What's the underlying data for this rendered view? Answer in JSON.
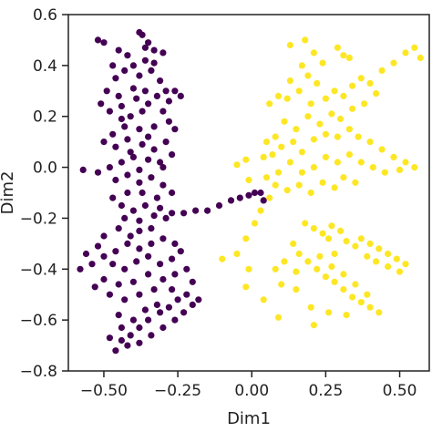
{
  "chart_data": {
    "type": "scatter",
    "title": "",
    "xlabel": "Dim1",
    "ylabel": "Dim2",
    "xlim": [
      -0.62,
      0.6
    ],
    "ylim": [
      -0.8,
      0.6
    ],
    "x_ticks": [
      -0.5,
      -0.25,
      0.0,
      0.25,
      0.5
    ],
    "x_tick_labels": [
      "−0.50",
      "−0.25",
      "0.00",
      "0.25",
      "0.50"
    ],
    "y_ticks": [
      0.6,
      0.4,
      0.2,
      0.0,
      -0.2,
      -0.4,
      -0.6,
      -0.8
    ],
    "y_tick_labels": [
      "0.6",
      "0.4",
      "0.2",
      "0.0",
      "−0.2",
      "−0.4",
      "−0.6",
      "−0.8"
    ],
    "grid": false,
    "legend": "none",
    "series": [
      {
        "color": "#440154",
        "points": [
          [
            -0.52,
            0.5
          ],
          [
            -0.5,
            0.49
          ],
          [
            -0.45,
            0.46
          ],
          [
            -0.42,
            0.44
          ],
          [
            -0.38,
            0.53
          ],
          [
            -0.37,
            0.52
          ],
          [
            -0.35,
            0.49
          ],
          [
            -0.33,
            0.46
          ],
          [
            -0.3,
            0.45
          ],
          [
            -0.36,
            0.42
          ],
          [
            -0.4,
            0.4
          ],
          [
            -0.43,
            0.38
          ],
          [
            -0.46,
            0.35
          ],
          [
            -0.38,
            0.36
          ],
          [
            -0.34,
            0.38
          ],
          [
            -0.31,
            0.34
          ],
          [
            -0.29,
            0.3
          ],
          [
            -0.26,
            0.3
          ],
          [
            -0.24,
            0.28
          ],
          [
            -0.32,
            0.28
          ],
          [
            -0.4,
            0.31
          ],
          [
            -0.45,
            0.28
          ],
          [
            -0.49,
            0.3
          ],
          [
            -0.51,
            0.25
          ],
          [
            -0.48,
            0.22
          ],
          [
            -0.44,
            0.24
          ],
          [
            -0.41,
            0.2
          ],
          [
            -0.37,
            0.22
          ],
          [
            -0.35,
            0.25
          ],
          [
            -0.3,
            0.22
          ],
          [
            -0.28,
            0.18
          ],
          [
            -0.26,
            0.15
          ],
          [
            -0.33,
            0.16
          ],
          [
            -0.38,
            0.15
          ],
          [
            -0.43,
            0.16
          ],
          [
            -0.47,
            0.13
          ],
          [
            -0.5,
            0.1
          ],
          [
            -0.46,
            0.08
          ],
          [
            -0.42,
            0.11
          ],
          [
            -0.37,
            0.09
          ],
          [
            -0.33,
            0.07
          ],
          [
            -0.29,
            0.1
          ],
          [
            -0.27,
            0.05
          ],
          [
            -0.31,
            0.02
          ],
          [
            -0.35,
            0.03
          ],
          [
            -0.4,
            0.04
          ],
          [
            -0.44,
            0.02
          ],
          [
            -0.48,
            0.0
          ],
          [
            -0.52,
            -0.02
          ],
          [
            -0.57,
            -0.01
          ],
          [
            -0.46,
            -0.05
          ],
          [
            -0.42,
            -0.03
          ],
          [
            -0.38,
            -0.06
          ],
          [
            -0.34,
            -0.04
          ],
          [
            -0.3,
            -0.07
          ],
          [
            -0.27,
            -0.1
          ],
          [
            -0.32,
            -0.12
          ],
          [
            -0.37,
            -0.1
          ],
          [
            -0.42,
            -0.1
          ],
          [
            -0.47,
            -0.12
          ],
          [
            -0.44,
            -0.15
          ],
          [
            -0.4,
            -0.17
          ],
          [
            -0.36,
            -0.15
          ],
          [
            -0.31,
            -0.16
          ],
          [
            -0.27,
            -0.18
          ],
          [
            -0.23,
            -0.18
          ],
          [
            -0.19,
            -0.17
          ],
          [
            -0.15,
            -0.17
          ],
          [
            -0.11,
            -0.15
          ],
          [
            -0.07,
            -0.13
          ],
          [
            -0.04,
            -0.12
          ],
          [
            -0.01,
            -0.11
          ],
          [
            0.01,
            -0.1
          ],
          [
            0.03,
            -0.1
          ],
          [
            0.04,
            -0.13
          ],
          [
            -0.33,
            -0.19
          ],
          [
            -0.29,
            -0.2
          ],
          [
            -0.38,
            -0.21
          ],
          [
            -0.43,
            -0.2
          ],
          [
            -0.34,
            -0.24
          ],
          [
            -0.3,
            -0.28
          ],
          [
            -0.26,
            -0.3
          ],
          [
            -0.34,
            -0.3
          ],
          [
            -0.38,
            -0.32
          ],
          [
            -0.42,
            -0.3
          ],
          [
            -0.46,
            -0.33
          ],
          [
            -0.5,
            -0.35
          ],
          [
            -0.54,
            -0.38
          ],
          [
            -0.58,
            -0.4
          ],
          [
            -0.56,
            -0.34
          ],
          [
            -0.52,
            -0.31
          ],
          [
            -0.47,
            -0.38
          ],
          [
            -0.43,
            -0.4
          ],
          [
            -0.39,
            -0.37
          ],
          [
            -0.35,
            -0.35
          ],
          [
            -0.31,
            -0.38
          ],
          [
            -0.27,
            -0.36
          ],
          [
            -0.24,
            -0.33
          ],
          [
            -0.26,
            -0.42
          ],
          [
            -0.3,
            -0.44
          ],
          [
            -0.35,
            -0.42
          ],
          [
            -0.4,
            -0.45
          ],
          [
            -0.45,
            -0.46
          ],
          [
            -0.5,
            -0.44
          ],
          [
            -0.53,
            -0.47
          ],
          [
            -0.48,
            -0.5
          ],
          [
            -0.43,
            -0.52
          ],
          [
            -0.38,
            -0.5
          ],
          [
            -0.33,
            -0.48
          ],
          [
            -0.22,
            -0.4
          ],
          [
            -0.2,
            -0.45
          ],
          [
            -0.22,
            -0.5
          ],
          [
            -0.25,
            -0.52
          ],
          [
            -0.28,
            -0.55
          ],
          [
            -0.31,
            -0.57
          ],
          [
            -0.35,
            -0.6
          ],
          [
            -0.38,
            -0.63
          ],
          [
            -0.41,
            -0.66
          ],
          [
            -0.44,
            -0.68
          ],
          [
            -0.46,
            -0.72
          ],
          [
            -0.42,
            -0.7
          ],
          [
            -0.38,
            -0.69
          ],
          [
            -0.34,
            -0.66
          ],
          [
            -0.3,
            -0.63
          ],
          [
            -0.26,
            -0.6
          ],
          [
            -0.23,
            -0.57
          ],
          [
            -0.2,
            -0.54
          ],
          [
            -0.18,
            -0.52
          ],
          [
            -0.32,
            -0.54
          ],
          [
            -0.36,
            -0.56
          ],
          [
            -0.4,
            -0.6
          ],
          [
            -0.44,
            -0.63
          ],
          [
            -0.48,
            -0.67
          ],
          [
            -0.45,
            -0.58
          ],
          [
            -0.27,
            -0.48
          ],
          [
            -0.38,
            -0.25
          ],
          [
            -0.45,
            -0.24
          ],
          [
            -0.5,
            -0.27
          ],
          [
            -0.41,
            -0.27
          ],
          [
            -0.36,
            0.3
          ],
          [
            -0.39,
            0.27
          ],
          [
            -0.35,
            0.12
          ],
          [
            -0.41,
            0.06
          ],
          [
            -0.3,
            0.0
          ],
          [
            -0.38,
            -0.01
          ],
          [
            -0.44,
            0.19
          ],
          [
            -0.28,
            0.26
          ],
          [
            -0.47,
            0.4
          ],
          [
            -0.36,
            0.47
          ],
          [
            -0.33,
            0.41
          ]
        ]
      },
      {
        "color": "#fde725",
        "points": [
          [
            0.13,
            0.48
          ],
          [
            0.18,
            0.5
          ],
          [
            0.21,
            0.45
          ],
          [
            0.24,
            0.41
          ],
          [
            0.29,
            0.47
          ],
          [
            0.31,
            0.44
          ],
          [
            0.33,
            0.43
          ],
          [
            0.17,
            0.4
          ],
          [
            0.19,
            0.36
          ],
          [
            0.13,
            0.34
          ],
          [
            0.09,
            0.28
          ],
          [
            0.06,
            0.25
          ],
          [
            0.12,
            0.27
          ],
          [
            0.16,
            0.3
          ],
          [
            0.22,
            0.33
          ],
          [
            0.2,
            0.25
          ],
          [
            0.25,
            0.27
          ],
          [
            0.28,
            0.3
          ],
          [
            0.31,
            0.28
          ],
          [
            0.34,
            0.32
          ],
          [
            0.37,
            0.35
          ],
          [
            0.4,
            0.33
          ],
          [
            0.44,
            0.38
          ],
          [
            0.48,
            0.41
          ],
          [
            0.52,
            0.45
          ],
          [
            0.55,
            0.47
          ],
          [
            0.57,
            0.43
          ],
          [
            0.42,
            0.29
          ],
          [
            0.38,
            0.25
          ],
          [
            0.34,
            0.23
          ],
          [
            0.3,
            0.19
          ],
          [
            0.27,
            0.21
          ],
          [
            0.23,
            0.17
          ],
          [
            0.19,
            0.2
          ],
          [
            0.15,
            0.15
          ],
          [
            0.11,
            0.18
          ],
          [
            0.08,
            0.12
          ],
          [
            0.05,
            0.1
          ],
          [
            0.1,
            0.08
          ],
          [
            0.14,
            0.1
          ],
          [
            0.17,
            0.06
          ],
          [
            0.21,
            0.11
          ],
          [
            0.25,
            0.13
          ],
          [
            0.29,
            0.12
          ],
          [
            0.33,
            0.15
          ],
          [
            0.36,
            0.12
          ],
          [
            0.4,
            0.1
          ],
          [
            0.44,
            0.07
          ],
          [
            0.48,
            0.04
          ],
          [
            0.52,
            0.02
          ],
          [
            0.55,
            0.0
          ],
          [
            0.5,
            -0.01
          ],
          [
            0.45,
            -0.02
          ],
          [
            0.41,
            0.0
          ],
          [
            0.37,
            0.02
          ],
          [
            0.33,
            0.05
          ],
          [
            0.29,
            0.02
          ],
          [
            0.25,
            0.04
          ],
          [
            0.21,
            0.0
          ],
          [
            0.17,
            -0.02
          ],
          [
            0.13,
            0.02
          ],
          [
            0.09,
            -0.02
          ],
          [
            0.05,
            -0.04
          ],
          [
            0.08,
            -0.07
          ],
          [
            0.12,
            -0.09
          ],
          [
            0.16,
            -0.07
          ],
          [
            0.2,
            -0.1
          ],
          [
            0.24,
            -0.06
          ],
          [
            0.28,
            -0.08
          ],
          [
            0.31,
            -0.04
          ],
          [
            0.35,
            -0.06
          ],
          [
            0.04,
            0.04
          ],
          [
            -0.02,
            0.03
          ],
          [
            -0.05,
            0.01
          ],
          [
            0.07,
            0.05
          ],
          [
            -0.01,
            -0.05
          ],
          [
            0.03,
            -0.17
          ],
          [
            0.06,
            -0.12
          ],
          [
            0.18,
            -0.22
          ],
          [
            0.21,
            -0.24
          ],
          [
            0.24,
            -0.26
          ],
          [
            0.27,
            -0.23
          ],
          [
            0.3,
            -0.25
          ],
          [
            0.26,
            -0.28
          ],
          [
            0.32,
            -0.29
          ],
          [
            0.35,
            -0.31
          ],
          [
            0.37,
            -0.28
          ],
          [
            0.4,
            -0.3
          ],
          [
            0.43,
            -0.32
          ],
          [
            0.46,
            -0.34
          ],
          [
            0.49,
            -0.36
          ],
          [
            0.52,
            -0.38
          ],
          [
            0.5,
            -0.41
          ],
          [
            0.46,
            -0.39
          ],
          [
            0.42,
            -0.37
          ],
          [
            0.39,
            -0.35
          ],
          [
            0.14,
            -0.3
          ],
          [
            0.16,
            -0.34
          ],
          [
            0.19,
            -0.37
          ],
          [
            0.22,
            -0.4
          ],
          [
            0.25,
            -0.43
          ],
          [
            0.28,
            -0.45
          ],
          [
            0.31,
            -0.48
          ],
          [
            0.34,
            -0.51
          ],
          [
            0.37,
            -0.53
          ],
          [
            0.4,
            -0.55
          ],
          [
            0.43,
            -0.57
          ],
          [
            0.39,
            -0.5
          ],
          [
            0.35,
            -0.46
          ],
          [
            0.31,
            -0.42
          ],
          [
            0.27,
            -0.39
          ],
          [
            0.23,
            -0.35
          ],
          [
            0.11,
            -0.37
          ],
          [
            0.08,
            -0.4
          ],
          [
            0.1,
            -0.46
          ],
          [
            0.15,
            -0.48
          ],
          [
            0.2,
            -0.55
          ],
          [
            0.26,
            -0.57
          ],
          [
            0.32,
            -0.58
          ],
          [
            0.21,
            -0.62
          ],
          [
            0.09,
            -0.59
          ],
          [
            0.04,
            -0.52
          ],
          [
            -0.01,
            -0.4
          ],
          [
            -0.05,
            -0.34
          ],
          [
            -0.1,
            -0.36
          ],
          [
            -0.02,
            -0.28
          ],
          [
            0.01,
            -0.22
          ],
          [
            -0.02,
            -0.47
          ],
          [
            0.15,
            -0.41
          ],
          [
            0.28,
            -0.34
          ]
        ]
      }
    ]
  }
}
